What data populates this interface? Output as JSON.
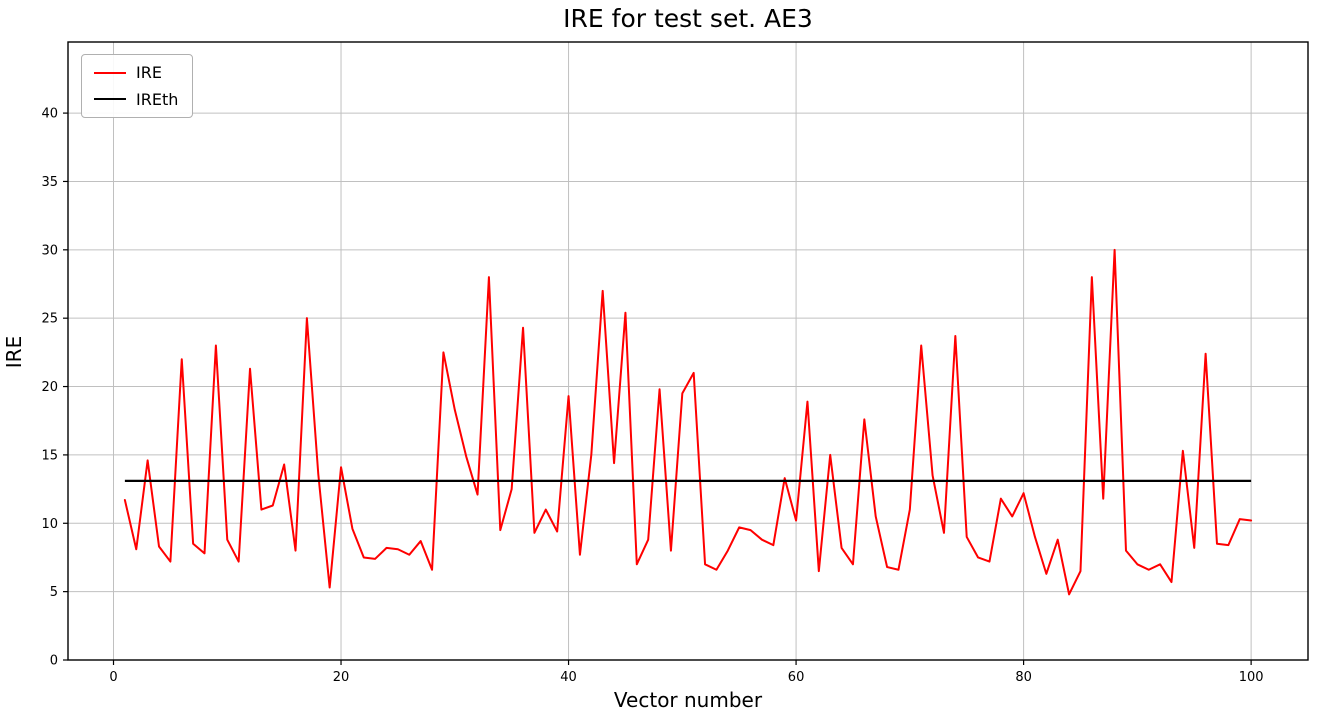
{
  "chart_data": {
    "type": "line",
    "title": "IRE for test set. AE3",
    "xlabel": "Vector number",
    "ylabel": "IRE",
    "xlim": [
      -4,
      105
    ],
    "ylim": [
      0,
      45.2
    ],
    "xticks": [
      0,
      20,
      40,
      60,
      80,
      100
    ],
    "yticks": [
      0,
      5,
      10,
      15,
      20,
      25,
      30,
      35,
      40
    ],
    "x_start": 1,
    "x_step": 1,
    "grid": true,
    "grid_color": "#c0c0c0",
    "axis_color": "#000000",
    "legend_position": "upper-left",
    "series": [
      {
        "name": "IRE",
        "type": "line",
        "color": "#ff0000",
        "values": [
          11.7,
          8.1,
          14.6,
          8.3,
          7.2,
          22.0,
          8.5,
          7.8,
          23.0,
          8.8,
          7.2,
          21.3,
          11.0,
          11.3,
          14.3,
          8.0,
          25.0,
          13.6,
          5.3,
          14.1,
          9.6,
          7.5,
          7.4,
          8.2,
          8.1,
          7.7,
          8.7,
          6.6,
          22.5,
          18.3,
          14.9,
          12.1,
          28.0,
          9.5,
          12.5,
          24.3,
          9.3,
          11.0,
          9.4,
          19.3,
          7.7,
          15.0,
          27.0,
          14.4,
          25.4,
          7.0,
          8.8,
          19.8,
          8.0,
          19.5,
          21.0,
          7.0,
          6.6,
          8.0,
          9.7,
          9.5,
          8.8,
          8.4,
          13.3,
          10.2,
          18.9,
          6.5,
          15.0,
          8.2,
          7.0,
          17.6,
          10.5,
          6.8,
          6.6,
          11.0,
          23.0,
          13.5,
          9.3,
          23.7,
          9.0,
          7.5,
          7.2,
          11.8,
          10.5,
          12.2,
          9.0,
          6.3,
          8.8,
          4.8,
          6.5,
          28.0,
          11.8,
          30.0,
          8.0,
          7.0,
          6.6,
          7.0,
          5.7,
          15.3,
          8.2,
          22.4,
          8.5,
          8.4,
          10.3,
          10.2
        ]
      },
      {
        "name": "IREth",
        "type": "hline",
        "color": "#000000",
        "value": 13.1
      }
    ]
  }
}
